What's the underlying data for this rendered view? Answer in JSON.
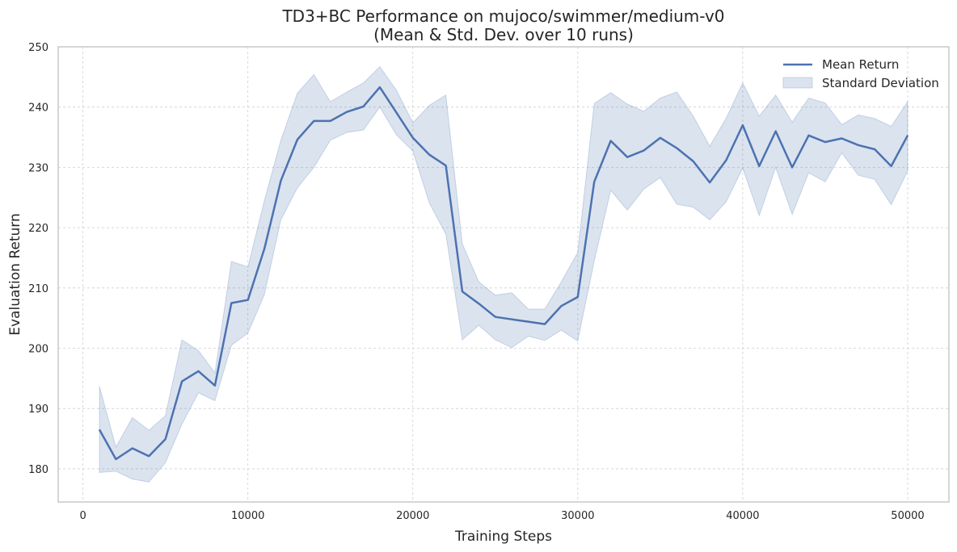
{
  "chart_data": {
    "type": "line",
    "title_line1": "TD3+BC Performance on mujoco/swimmer/medium-v0",
    "title_line2": "(Mean & Std. Dev. over 10 runs)",
    "xlabel": "Training Steps",
    "ylabel": "Evaluation Return",
    "xlim": [
      -1500,
      52500
    ],
    "ylim": [
      174.5,
      250
    ],
    "x_ticks": [
      0,
      10000,
      20000,
      30000,
      40000,
      50000
    ],
    "y_ticks": [
      180,
      190,
      200,
      210,
      220,
      230,
      240,
      250
    ],
    "grid": true,
    "legend_placement": "top-right",
    "colors": {
      "line": "#4c72b0",
      "band": "#4c72b0"
    },
    "legend": [
      {
        "label": "Mean Return",
        "kind": "line"
      },
      {
        "label": "Standard Deviation",
        "kind": "band"
      }
    ],
    "x": [
      1000,
      2000,
      3000,
      4000,
      5000,
      6000,
      7000,
      8000,
      9000,
      10000,
      11000,
      12000,
      13000,
      14000,
      15000,
      16000,
      17000,
      18000,
      19000,
      20000,
      21000,
      22000,
      23000,
      24000,
      25000,
      26000,
      27000,
      28000,
      29000,
      30000,
      31000,
      32000,
      33000,
      34000,
      35000,
      36000,
      37000,
      38000,
      39000,
      40000,
      41000,
      42000,
      43000,
      44000,
      45000,
      46000,
      47000,
      48000,
      49000,
      50000
    ],
    "series": [
      {
        "name": "Mean Return",
        "values": [
          186.5,
          181.6,
          183.4,
          182.1,
          184.9,
          194.5,
          196.2,
          193.8,
          207.5,
          208.0,
          216.5,
          227.8,
          234.6,
          237.7,
          237.7,
          239.2,
          240.1,
          243.3,
          239.1,
          234.9,
          232.1,
          230.3,
          209.4,
          207.4,
          205.2,
          204.8,
          204.4,
          204.0,
          207.0,
          208.5,
          227.6,
          234.4,
          231.7,
          232.8,
          234.9,
          233.2,
          231.0,
          227.5,
          231.2,
          237.0,
          230.2,
          236.0,
          230.0,
          235.3,
          234.2,
          234.8,
          233.7,
          233.0,
          230.2,
          235.3
        ],
        "upper": [
          193.7,
          183.6,
          188.5,
          186.4,
          188.8,
          201.4,
          199.6,
          195.9,
          214.4,
          213.5,
          224.5,
          234.5,
          242.3,
          245.4,
          240.9,
          242.5,
          244.0,
          246.7,
          242.8,
          237.4,
          240.3,
          242.0,
          217.3,
          211.0,
          208.8,
          209.2,
          206.5,
          206.5,
          211.0,
          215.9,
          240.6,
          242.4,
          240.5,
          239.3,
          241.5,
          242.5,
          238.5,
          233.5,
          238.2,
          244.0,
          238.5,
          242.0,
          237.5,
          241.5,
          240.7,
          237.1,
          238.7,
          238.1,
          236.8,
          240.9
        ],
        "lower": [
          179.4,
          179.6,
          178.3,
          177.8,
          181.0,
          187.4,
          192.6,
          191.3,
          200.5,
          202.5,
          208.9,
          221.3,
          226.6,
          230.0,
          234.5,
          235.8,
          236.2,
          240.0,
          235.4,
          232.7,
          224.1,
          218.9,
          201.4,
          203.8,
          201.4,
          200.1,
          202.0,
          201.3,
          203.0,
          201.2,
          214.5,
          226.2,
          222.9,
          226.4,
          228.3,
          223.9,
          223.4,
          221.3,
          224.3,
          229.9,
          222.0,
          230.0,
          222.2,
          229.1,
          227.6,
          232.4,
          228.7,
          228.0,
          223.8,
          229.4
        ]
      }
    ]
  }
}
